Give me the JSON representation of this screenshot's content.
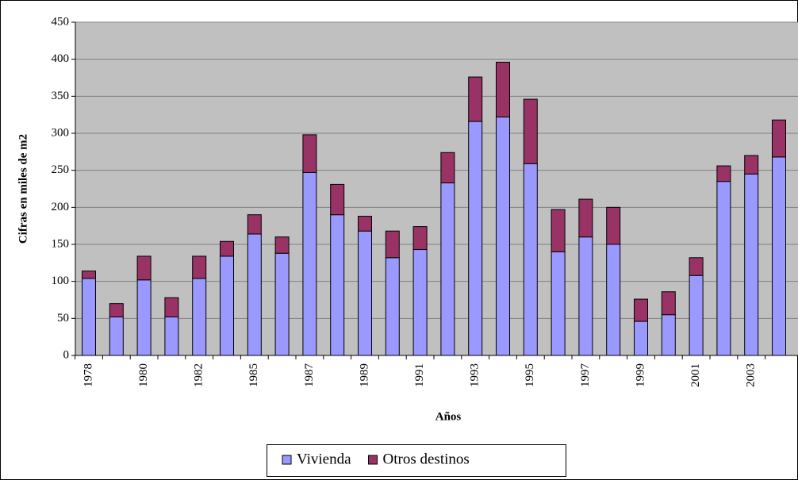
{
  "chart_data": {
    "type": "stacked_bar",
    "xlabel": "Años",
    "ylabel": "Cifras en miles de m2",
    "categories": [
      "1978",
      null,
      "1980",
      null,
      "1982",
      null,
      "1985",
      null,
      "1987",
      null,
      "1989",
      null,
      "1991",
      null,
      "1993",
      null,
      "1995",
      null,
      "1997",
      null,
      "1999",
      null,
      "2001",
      null,
      "2003",
      null
    ],
    "series": [
      {
        "name": "Vivienda",
        "color": "#9999ff",
        "values": [
          104,
          52,
          102,
          52,
          104,
          134,
          164,
          138,
          247,
          190,
          168,
          132,
          143,
          233,
          316,
          322,
          259,
          140,
          160,
          150,
          46,
          55,
          108,
          235,
          245,
          268
        ]
      },
      {
        "name": "Otros destinos",
        "color": "#993366",
        "values": [
          10,
          18,
          32,
          26,
          30,
          20,
          26,
          22,
          51,
          41,
          20,
          36,
          31,
          41,
          60,
          74,
          87,
          57,
          51,
          50,
          30,
          31,
          24,
          21,
          25,
          50
        ]
      }
    ],
    "ylim": [
      0,
      450
    ],
    "yticks": [
      0,
      50,
      100,
      150,
      200,
      250,
      300,
      350,
      400,
      450
    ],
    "grid": true,
    "legend": "bottom",
    "background": "#c0c0c0"
  }
}
